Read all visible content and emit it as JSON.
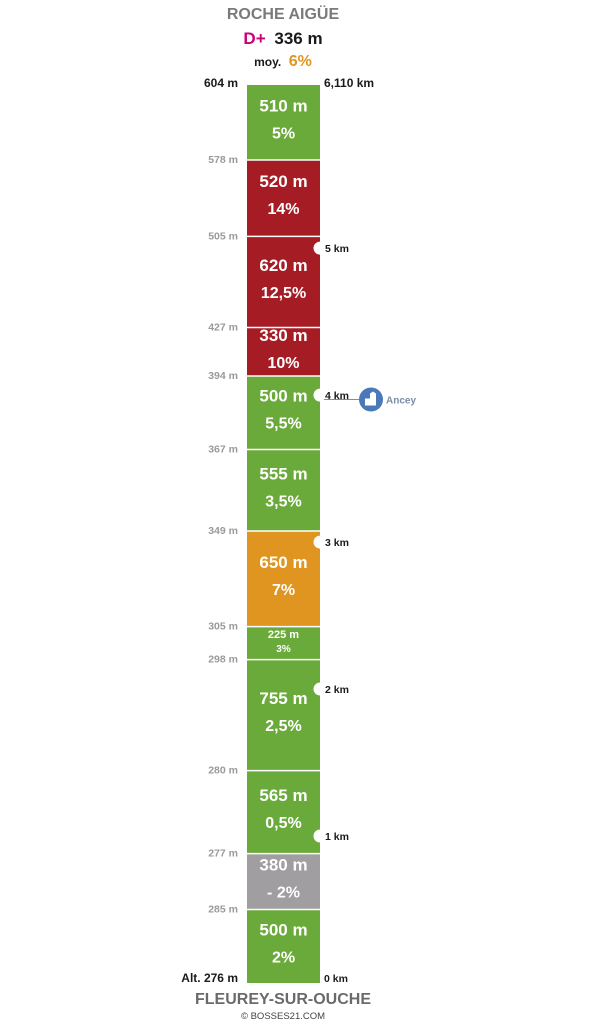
{
  "header": {
    "summit": "ROCHE AIGÜE",
    "dplus_label": "D+",
    "dplus_value": "336 m",
    "avg_label": "moy.",
    "avg_value": "6%"
  },
  "top": {
    "altitude": "604 m",
    "distance": "6,110 km"
  },
  "start": {
    "name": "FLEUREY-SUR-OUCHE",
    "altitude": "Alt. 276 m",
    "distance": "0 km"
  },
  "credit": "© BOSSES21.COM",
  "colors": {
    "green": "#6aaa3a",
    "red": "#a51c24",
    "orange": "#df9520",
    "gray": "#a09ea0",
    "poi_blue": "#4a78b8"
  },
  "chart_data": {
    "type": "bar",
    "orientation": "vertical-stacked-profile",
    "segments": [
      {
        "length_m": 500,
        "length": "500 m",
        "gradient_pct": 2,
        "gradient": "2%",
        "color": "green",
        "start_alt": "Alt. 276 m",
        "start_alt_m": 276
      },
      {
        "length_m": 380,
        "length": "380 m",
        "gradient_pct": -2,
        "gradient": "- 2%",
        "color": "gray",
        "start_alt": "285 m",
        "start_alt_m": 285
      },
      {
        "length_m": 565,
        "length": "565 m",
        "gradient_pct": 0.5,
        "gradient": "0,5%",
        "color": "green",
        "start_alt": "277 m",
        "start_alt_m": 277
      },
      {
        "length_m": 755,
        "length": "755 m",
        "gradient_pct": 2.5,
        "gradient": "2,5%",
        "color": "green",
        "start_alt": "280 m",
        "start_alt_m": 280
      },
      {
        "length_m": 225,
        "length": "225 m",
        "gradient_pct": 3,
        "gradient": "3%",
        "color": "green",
        "start_alt": "298 m",
        "start_alt_m": 298
      },
      {
        "length_m": 650,
        "length": "650 m",
        "gradient_pct": 7,
        "gradient": "7%",
        "color": "orange",
        "start_alt": "305 m",
        "start_alt_m": 305
      },
      {
        "length_m": 555,
        "length": "555 m",
        "gradient_pct": 3.5,
        "gradient": "3,5%",
        "color": "green",
        "start_alt": "349 m",
        "start_alt_m": 349
      },
      {
        "length_m": 500,
        "length": "500 m",
        "gradient_pct": 5.5,
        "gradient": "5,5%",
        "color": "green",
        "start_alt": "367 m",
        "start_alt_m": 367
      },
      {
        "length_m": 330,
        "length": "330 m",
        "gradient_pct": 10,
        "gradient": "10%",
        "color": "red",
        "start_alt": "394 m",
        "start_alt_m": 394
      },
      {
        "length_m": 620,
        "length": "620 m",
        "gradient_pct": 12.5,
        "gradient": "12,5%",
        "color": "red",
        "start_alt": "427 m",
        "start_alt_m": 427
      },
      {
        "length_m": 520,
        "length": "520 m",
        "gradient_pct": 14,
        "gradient": "14%",
        "color": "red",
        "start_alt": "505 m",
        "start_alt_m": 505
      },
      {
        "length_m": 510,
        "length": "510 m",
        "gradient_pct": 5,
        "gradient": "5%",
        "color": "green",
        "start_alt": "578 m",
        "start_alt_m": 578
      }
    ],
    "km_markers": [
      {
        "km": 1,
        "label": "1 km"
      },
      {
        "km": 2,
        "label": "2 km"
      },
      {
        "km": 3,
        "label": "3 km"
      },
      {
        "km": 4,
        "label": "4 km"
      },
      {
        "km": 5,
        "label": "5 km"
      }
    ],
    "poi": [
      {
        "name": "Ancey",
        "km": 3.97,
        "icon": "church-icon"
      }
    ]
  }
}
